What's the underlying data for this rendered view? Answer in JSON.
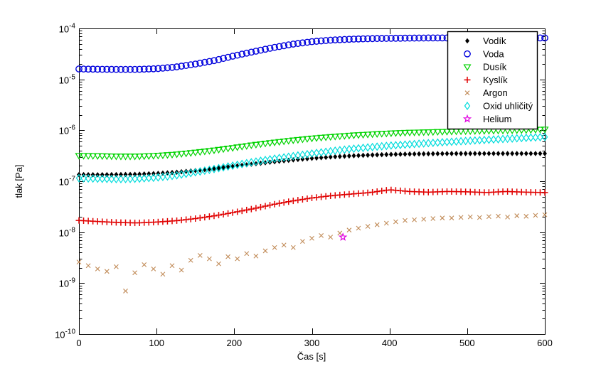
{
  "window": {
    "background": "#ffffff",
    "axis_color": "#000000"
  },
  "chart_data": {
    "type": "scatter",
    "title": "",
    "xlabel": "Čas [s]",
    "ylabel": "tlak [Pa]",
    "xlim": [
      0,
      600
    ],
    "x_ticks": [
      0,
      100,
      200,
      300,
      400,
      500,
      600
    ],
    "y_scale": "log",
    "ylim": [
      1e-10,
      0.0001
    ],
    "ylim_log10": [
      -10,
      -4
    ],
    "y_tick_exponents": [
      -4,
      -5,
      -6,
      -7,
      -8,
      -9,
      -10
    ],
    "grid": false,
    "box": true,
    "legend_position": "upper-right",
    "marker_spacing_s": 6,
    "series": [
      {
        "name": "Vodík",
        "marker": "diamond-filled",
        "color": "#000000",
        "draw": "interpolated",
        "x": [
          0,
          25,
          50,
          75,
          100,
          125,
          150,
          175,
          200,
          225,
          250,
          275,
          300,
          325,
          350,
          375,
          400,
          425,
          450,
          475,
          500,
          525,
          550,
          575,
          600
        ],
        "y": [
          1.35e-07,
          1.34e-07,
          1.35e-07,
          1.37e-07,
          1.42e-07,
          1.5e-07,
          1.62e-07,
          1.78e-07,
          1.97e-07,
          2.18e-07,
          2.4e-07,
          2.62e-07,
          2.82e-07,
          3e-07,
          3.15e-07,
          3.27e-07,
          3.36e-07,
          3.42e-07,
          3.46e-07,
          3.49e-07,
          3.5e-07,
          3.5e-07,
          3.5e-07,
          3.5e-07,
          3.5e-07
        ]
      },
      {
        "name": "Voda",
        "marker": "circle-open",
        "color": "#0000dd",
        "draw": "interpolated",
        "x": [
          0,
          25,
          50,
          75,
          100,
          125,
          150,
          175,
          200,
          225,
          250,
          275,
          300,
          325,
          350,
          375,
          400,
          425,
          450,
          475,
          500,
          525,
          550,
          575,
          600
        ],
        "y": [
          1.6e-05,
          1.58e-05,
          1.57e-05,
          1.57e-05,
          1.62e-05,
          1.75e-05,
          2e-05,
          2.35e-05,
          2.9e-05,
          3.5e-05,
          4.2e-05,
          4.9e-05,
          5.5e-05,
          5.9e-05,
          6.15e-05,
          6.3e-05,
          6.4e-05,
          6.45e-05,
          6.5e-05,
          6.5e-05,
          6.5e-05,
          6.5e-05,
          6.5e-05,
          6.5e-05,
          6.5e-05
        ]
      },
      {
        "name": "Dusík",
        "marker": "triangle-down-open",
        "color": "#00d300",
        "draw": "interpolated",
        "x": [
          0,
          25,
          50,
          75,
          100,
          125,
          150,
          175,
          200,
          225,
          250,
          275,
          300,
          325,
          350,
          375,
          400,
          425,
          450,
          475,
          500,
          525,
          550,
          575,
          600
        ],
        "y": [
          3.2e-07,
          3.15e-07,
          3.1e-07,
          3.1e-07,
          3.2e-07,
          3.4e-07,
          3.7e-07,
          4.1e-07,
          4.6e-07,
          5.2e-07,
          5.8e-07,
          6.4e-07,
          7e-07,
          7.5e-07,
          8e-07,
          8.4e-07,
          8.8e-07,
          9.1e-07,
          9.3e-07,
          9.5e-07,
          9.7e-07,
          9.85e-07,
          1e-06,
          1.02e-06,
          1.05e-06
        ]
      },
      {
        "name": "Kyslík",
        "marker": "plus",
        "color": "#e00000",
        "draw": "interpolated",
        "x": [
          0,
          25,
          50,
          75,
          100,
          125,
          150,
          175,
          200,
          225,
          250,
          275,
          300,
          325,
          350,
          375,
          400,
          425,
          450,
          475,
          500,
          525,
          550,
          575,
          600
        ],
        "y": [
          1.7e-08,
          1.62e-08,
          1.55e-08,
          1.52e-08,
          1.58e-08,
          1.68e-08,
          1.85e-08,
          2.1e-08,
          2.45e-08,
          2.9e-08,
          3.5e-08,
          4.1e-08,
          4.7e-08,
          5.2e-08,
          5.6e-08,
          6e-08,
          6.8e-08,
          6.3e-08,
          6.1e-08,
          6.3e-08,
          6.2e-08,
          6e-08,
          6.3e-08,
          6.1e-08,
          6e-08
        ]
      },
      {
        "name": "Argon",
        "marker": "x",
        "color": "#c08a56",
        "draw": "points",
        "x": [
          0,
          12,
          24,
          36,
          48,
          60,
          72,
          84,
          96,
          108,
          120,
          132,
          144,
          156,
          168,
          180,
          192,
          204,
          216,
          228,
          240,
          252,
          264,
          276,
          288,
          300,
          312,
          324,
          336,
          348,
          360,
          372,
          384,
          396,
          408,
          420,
          432,
          444,
          456,
          468,
          480,
          492,
          504,
          516,
          528,
          540,
          552,
          564,
          576,
          588,
          600
        ],
        "y": [
          2.6e-09,
          2.2e-09,
          1.9e-09,
          1.7e-09,
          2.1e-09,
          7e-10,
          1.6e-09,
          2.3e-09,
          1.9e-09,
          1.5e-09,
          2.2e-09,
          1.8e-09,
          2.8e-09,
          3.5e-09,
          3e-09,
          2.4e-09,
          3.3e-09,
          3e-09,
          3.8e-09,
          3.4e-09,
          4.3e-09,
          5e-09,
          5.6e-09,
          5e-09,
          6.6e-09,
          7.6e-09,
          8.6e-09,
          8e-09,
          9.6e-09,
          1.1e-08,
          1.2e-08,
          1.3e-08,
          1.4e-08,
          1.5e-08,
          1.6e-08,
          1.7e-08,
          1.75e-08,
          1.8e-08,
          1.85e-08,
          1.9e-08,
          1.9e-08,
          1.95e-08,
          2e-08,
          1.94e-08,
          2.02e-08,
          2.06e-08,
          1.98e-08,
          2.1e-08,
          2.05e-08,
          2.14e-08,
          2.2e-08
        ]
      },
      {
        "name": "Oxid uhličitý",
        "marker": "diamond-open",
        "color": "#00dcdc",
        "draw": "interpolated",
        "x": [
          0,
          25,
          50,
          75,
          100,
          125,
          150,
          175,
          200,
          225,
          250,
          275,
          300,
          325,
          350,
          375,
          400,
          425,
          450,
          475,
          500,
          525,
          550,
          575,
          600
        ],
        "y": [
          1.15e-07,
          1.12e-07,
          1.1e-07,
          1.12e-07,
          1.18e-07,
          1.3e-07,
          1.5e-07,
          1.75e-07,
          2.05e-07,
          2.4e-07,
          2.75e-07,
          3.1e-07,
          3.5e-07,
          3.9e-07,
          4.3e-07,
          4.65e-07,
          5e-07,
          5.3e-07,
          5.6e-07,
          5.9e-07,
          6.2e-07,
          6.5e-07,
          6.8e-07,
          7.1e-07,
          7.4e-07
        ]
      },
      {
        "name": "Helium",
        "marker": "pentagram-open",
        "color": "#e000e0",
        "draw": "points",
        "x": [
          340
        ],
        "y": [
          8e-09
        ]
      }
    ]
  }
}
